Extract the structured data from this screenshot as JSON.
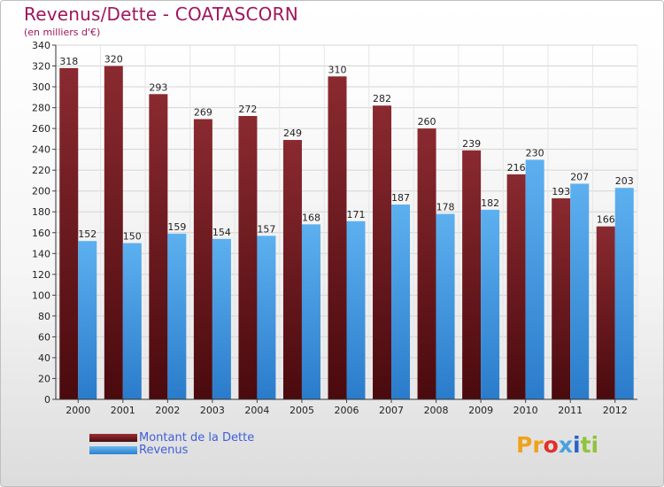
{
  "title": "Revenus/Dette - COATASCORN",
  "subtitle": "(en milliers d'€)",
  "chart_data": {
    "type": "bar",
    "categories": [
      "2000",
      "2001",
      "2002",
      "2003",
      "2004",
      "2005",
      "2006",
      "2007",
      "2008",
      "2009",
      "2010",
      "2011",
      "2012"
    ],
    "series": [
      {
        "name": "Montant de la Dette",
        "color": "#7a1e24",
        "values": [
          318,
          320,
          293,
          269,
          272,
          249,
          310,
          282,
          260,
          239,
          216,
          193,
          166
        ]
      },
      {
        "name": "Revenus",
        "color": "#4ea3e8",
        "values": [
          152,
          150,
          159,
          154,
          157,
          168,
          171,
          187,
          178,
          182,
          230,
          207,
          203
        ]
      }
    ],
    "ylim": [
      0,
      340
    ],
    "yticks": [
      0,
      20,
      40,
      60,
      80,
      100,
      120,
      140,
      160,
      180,
      200,
      220,
      240,
      260,
      280,
      300,
      320,
      340
    ],
    "grid": true,
    "legend_position": "bottom-left"
  },
  "legend": {
    "debt_label": "Montant de la Dette",
    "revenue_label": "Revenus"
  },
  "logo": {
    "letters": [
      "Pr",
      "o",
      "x",
      "i",
      "ti"
    ]
  }
}
